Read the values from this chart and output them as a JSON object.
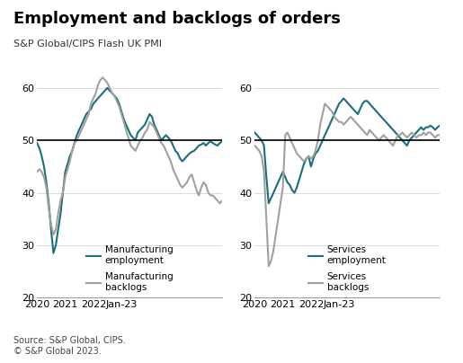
{
  "title": "Employment and backlogs of orders",
  "subtitle": "S&P Global/CIPS Flash UK PMI",
  "source": "Source: S&P Global, CIPS.\n© S&P Global 2023.",
  "teal_color": "#1a6e7e",
  "gray_color": "#a0a0a0",
  "background_color": "#ffffff",
  "ylim": [
    20,
    65
  ],
  "yticks": [
    20,
    30,
    40,
    50,
    60
  ],
  "hline_y": 50,
  "mfg_employment": [
    49.5,
    48.5,
    47.0,
    45.0,
    42.0,
    38.0,
    33.0,
    28.5,
    30.0,
    33.0,
    36.0,
    40.0,
    44.0,
    45.5,
    47.0,
    48.0,
    49.5,
    51.0,
    52.0,
    53.0,
    54.0,
    55.0,
    55.5,
    56.0,
    57.0,
    57.5,
    58.0,
    58.5,
    59.0,
    59.5,
    60.0,
    59.5,
    59.0,
    58.5,
    58.0,
    57.0,
    55.5,
    54.0,
    53.0,
    52.0,
    51.0,
    50.5,
    50.0,
    51.5,
    52.0,
    52.5,
    53.0,
    54.0,
    55.0,
    54.5,
    53.0,
    52.0,
    51.0,
    50.0,
    50.5,
    51.0,
    50.5,
    50.0,
    49.0,
    48.0,
    47.5,
    46.5,
    46.0,
    46.5,
    47.0,
    47.5,
    47.8,
    48.0,
    48.5,
    49.0,
    49.2,
    49.5,
    49.0,
    49.5,
    49.8,
    49.5,
    49.2,
    49.0,
    49.5,
    49.8
  ],
  "mfg_backlogs": [
    44.0,
    44.5,
    44.0,
    43.0,
    41.0,
    37.0,
    34.0,
    32.0,
    33.0,
    36.0,
    38.5,
    40.0,
    43.0,
    44.5,
    46.0,
    48.0,
    49.5,
    50.0,
    51.0,
    52.0,
    53.0,
    54.0,
    55.0,
    57.0,
    58.0,
    59.0,
    60.5,
    61.5,
    62.0,
    61.5,
    61.0,
    60.0,
    59.0,
    58.5,
    57.5,
    56.5,
    55.0,
    53.5,
    52.0,
    50.5,
    49.0,
    48.5,
    48.0,
    49.0,
    50.0,
    50.5,
    51.5,
    52.0,
    53.5,
    53.0,
    52.5,
    51.5,
    50.5,
    49.5,
    49.0,
    48.0,
    47.0,
    46.0,
    44.5,
    43.5,
    42.5,
    41.5,
    41.0,
    41.5,
    42.0,
    43.0,
    43.5,
    42.0,
    40.5,
    39.5,
    41.0,
    42.0,
    41.5,
    40.0,
    39.5,
    39.5,
    39.0,
    38.5,
    38.0,
    38.5
  ],
  "svc_employment": [
    51.5,
    51.0,
    50.5,
    50.0,
    49.0,
    43.0,
    38.0,
    39.0,
    40.0,
    41.0,
    42.0,
    43.0,
    44.0,
    43.0,
    42.0,
    41.5,
    40.5,
    40.0,
    41.0,
    42.5,
    44.0,
    45.5,
    46.5,
    47.0,
    45.0,
    46.5,
    47.5,
    48.0,
    49.0,
    50.0,
    51.0,
    52.0,
    53.0,
    54.0,
    55.0,
    56.0,
    57.0,
    57.5,
    58.0,
    57.5,
    57.0,
    56.5,
    56.0,
    55.5,
    55.0,
    56.0,
    57.0,
    57.5,
    57.5,
    57.0,
    56.5,
    56.0,
    55.5,
    55.0,
    54.5,
    54.0,
    53.5,
    53.0,
    52.5,
    52.0,
    51.5,
    51.0,
    50.5,
    50.0,
    49.5,
    49.0,
    50.0,
    50.5,
    51.0,
    51.5,
    52.0,
    52.5,
    52.0,
    52.5,
    52.5,
    52.8,
    52.5,
    52.0,
    52.5,
    52.8
  ],
  "svc_backlogs": [
    49.0,
    48.5,
    48.0,
    47.0,
    44.0,
    35.0,
    26.0,
    27.0,
    29.0,
    32.0,
    35.0,
    38.0,
    41.0,
    51.0,
    51.5,
    50.5,
    49.5,
    48.5,
    47.5,
    47.0,
    46.5,
    46.0,
    46.5,
    47.0,
    46.5,
    47.0,
    48.0,
    50.0,
    53.0,
    55.0,
    57.0,
    56.5,
    56.0,
    55.5,
    54.5,
    54.0,
    53.5,
    53.5,
    53.0,
    53.5,
    54.0,
    54.5,
    54.0,
    53.5,
    53.0,
    52.5,
    52.0,
    51.5,
    51.0,
    52.0,
    51.5,
    51.0,
    50.5,
    50.0,
    50.5,
    51.0,
    50.5,
    50.0,
    49.5,
    49.0,
    50.0,
    51.0,
    51.0,
    51.5,
    51.0,
    50.5,
    51.0,
    51.5,
    51.0,
    50.5,
    51.0,
    51.0,
    51.5,
    51.0,
    51.5,
    51.5,
    51.0,
    50.5,
    51.0,
    51.0
  ],
  "n_points": 80,
  "start_year": 2020,
  "start_month": 1
}
